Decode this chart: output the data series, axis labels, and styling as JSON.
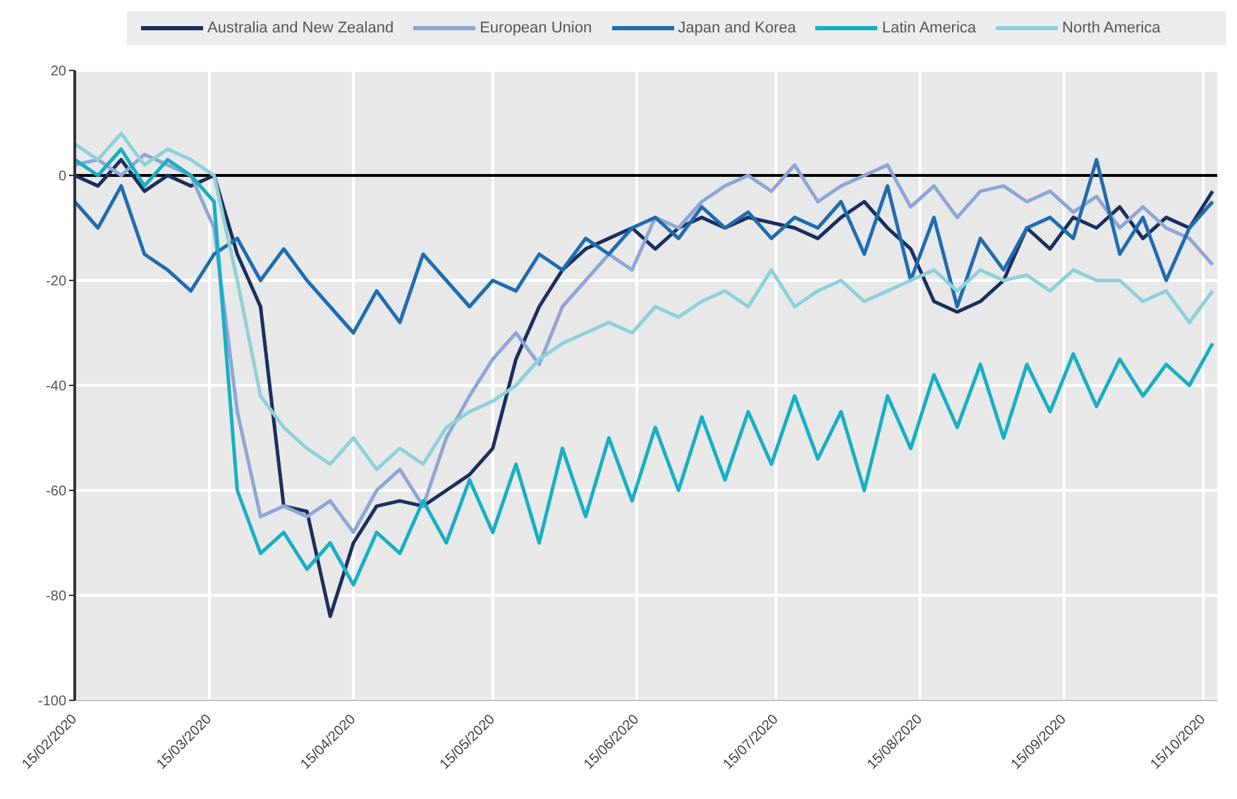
{
  "chart_data": {
    "type": "line",
    "legend": "top",
    "grid": true,
    "marker": "none",
    "line_style": "solid",
    "x": [
      "2020-02-15",
      "2020-02-20",
      "2020-02-25",
      "2020-03-01",
      "2020-03-06",
      "2020-03-11",
      "2020-03-16",
      "2020-03-21",
      "2020-03-26",
      "2020-03-31",
      "2020-04-05",
      "2020-04-10",
      "2020-04-15",
      "2020-04-20",
      "2020-04-25",
      "2020-04-30",
      "2020-05-05",
      "2020-05-10",
      "2020-05-15",
      "2020-05-20",
      "2020-05-25",
      "2020-05-30",
      "2020-06-04",
      "2020-06-09",
      "2020-06-14",
      "2020-06-19",
      "2020-06-24",
      "2020-06-29",
      "2020-07-04",
      "2020-07-09",
      "2020-07-14",
      "2020-07-19",
      "2020-07-24",
      "2020-07-29",
      "2020-08-03",
      "2020-08-08",
      "2020-08-13",
      "2020-08-18",
      "2020-08-23",
      "2020-08-28",
      "2020-09-02",
      "2020-09-07",
      "2020-09-12",
      "2020-09-17",
      "2020-09-22",
      "2020-09-27",
      "2020-10-02",
      "2020-10-07",
      "2020-10-12",
      "2020-10-17"
    ],
    "xlim": [
      "2020-02-15",
      "2020-10-18"
    ],
    "xticks": [
      {
        "value": "2020-02-15",
        "label": "15/02/2020"
      },
      {
        "value": "2020-03-15",
        "label": "15/03/2020"
      },
      {
        "value": "2020-04-15",
        "label": "15/04/2020"
      },
      {
        "value": "2020-05-15",
        "label": "15/05/2020"
      },
      {
        "value": "2020-06-15",
        "label": "15/06/2020"
      },
      {
        "value": "2020-07-15",
        "label": "15/07/2020"
      },
      {
        "value": "2020-08-15",
        "label": "15/08/2020"
      },
      {
        "value": "2020-09-15",
        "label": "15/09/2020"
      },
      {
        "value": "2020-10-15",
        "label": "15/10/2020"
      }
    ],
    "ylim": [
      -100,
      20
    ],
    "yticks": [
      -100,
      -80,
      -60,
      -40,
      -20,
      0,
      20
    ],
    "ref_lines": [
      {
        "axis": "y",
        "value": 0,
        "color": "#000000"
      }
    ],
    "series": [
      {
        "name": "Australia and New Zealand",
        "color": "#1b2f5e",
        "values": [
          0,
          -2,
          3,
          -3,
          0,
          -2,
          0,
          -15,
          -25,
          -63,
          -64,
          -84,
          -70,
          -63,
          -62,
          -63,
          -60,
          -57,
          -52,
          -35,
          -25,
          -18,
          -14,
          -12,
          -10,
          -14,
          -10,
          -8,
          -10,
          -8,
          -9,
          -10,
          -12,
          -8,
          -5,
          -10,
          -14,
          -24,
          -26,
          -24,
          -20,
          -10,
          -14,
          -8,
          -10,
          -6,
          -12,
          -8,
          -10,
          -3
        ]
      },
      {
        "name": "European Union",
        "color": "#8ea6d4",
        "values": [
          2,
          3,
          0,
          4,
          2,
          0,
          -10,
          -45,
          -65,
          -63,
          -65,
          -62,
          -68,
          -60,
          -56,
          -63,
          -50,
          -42,
          -35,
          -30,
          -36,
          -25,
          -20,
          -15,
          -18,
          -8,
          -10,
          -5,
          -2,
          0,
          -3,
          2,
          -5,
          -2,
          0,
          2,
          -6,
          -2,
          -8,
          -3,
          -2,
          -5,
          -3,
          -7,
          -4,
          -10,
          -6,
          -10,
          -12,
          -17
        ]
      },
      {
        "name": "Japan and Korea",
        "color": "#1f6cb0",
        "values": [
          -5,
          -10,
          -2,
          -15,
          -18,
          -22,
          -15,
          -12,
          -20,
          -14,
          -20,
          -25,
          -30,
          -22,
          -28,
          -15,
          -20,
          -25,
          -20,
          -22,
          -15,
          -18,
          -12,
          -15,
          -10,
          -8,
          -12,
          -6,
          -10,
          -7,
          -12,
          -8,
          -10,
          -5,
          -15,
          -2,
          -20,
          -8,
          -25,
          -12,
          -18,
          -10,
          -8,
          -12,
          3,
          -15,
          -8,
          -20,
          -10,
          -5
        ]
      },
      {
        "name": "Latin America",
        "color": "#17afc4",
        "values": [
          3,
          0,
          5,
          -2,
          3,
          0,
          -5,
          -60,
          -72,
          -68,
          -75,
          -70,
          -78,
          -68,
          -72,
          -62,
          -70,
          -58,
          -68,
          -55,
          -70,
          -52,
          -65,
          -50,
          -62,
          -48,
          -60,
          -46,
          -58,
          -45,
          -55,
          -42,
          -54,
          -45,
          -60,
          -42,
          -52,
          -38,
          -48,
          -36,
          -50,
          -36,
          -45,
          -34,
          -44,
          -35,
          -42,
          -36,
          -40,
          -32
        ]
      },
      {
        "name": "North America",
        "color": "#8fd1da",
        "values": [
          6,
          3,
          8,
          2,
          5,
          3,
          0,
          -20,
          -42,
          -48,
          -52,
          -55,
          -50,
          -56,
          -52,
          -55,
          -48,
          -45,
          -43,
          -40,
          -35,
          -32,
          -30,
          -28,
          -30,
          -25,
          -27,
          -24,
          -22,
          -25,
          -18,
          -25,
          -22,
          -20,
          -24,
          -22,
          -20,
          -18,
          -22,
          -18,
          -20,
          -19,
          -22,
          -18,
          -20,
          -20,
          -24,
          -22,
          -28,
          -22
        ]
      }
    ]
  }
}
